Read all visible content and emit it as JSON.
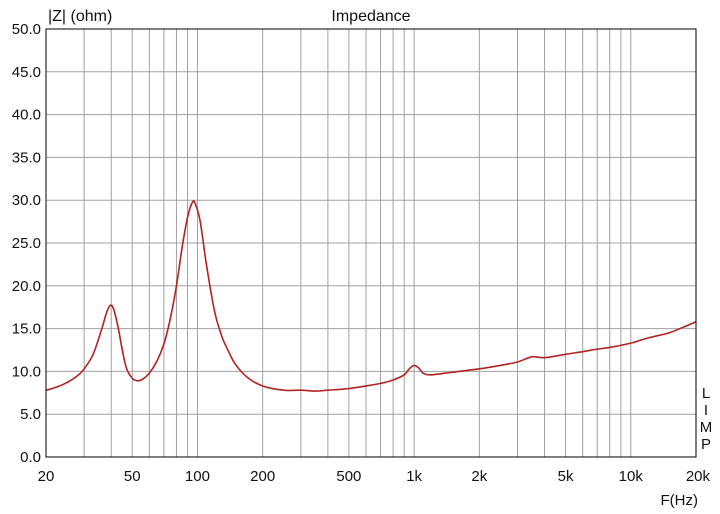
{
  "chart_data": {
    "type": "line",
    "title": "Impedance",
    "ylabel": "|Z| (ohm)",
    "xlabel": "F(Hz)",
    "side_label": [
      "L",
      "I",
      "M",
      "P"
    ],
    "x_scale": "log",
    "xlim": [
      20,
      20000
    ],
    "ylim": [
      0,
      50
    ],
    "grid": true,
    "x_ticks": [
      {
        "value": 20,
        "label": "20"
      },
      {
        "value": 50,
        "label": "50"
      },
      {
        "value": 100,
        "label": "100"
      },
      {
        "value": 200,
        "label": "200"
      },
      {
        "value": 500,
        "label": "500"
      },
      {
        "value": 1000,
        "label": "1k"
      },
      {
        "value": 2000,
        "label": "2k"
      },
      {
        "value": 5000,
        "label": "5k"
      },
      {
        "value": 10000,
        "label": "10k"
      },
      {
        "value": 20000,
        "label": "20k"
      }
    ],
    "x_minor_grid": [
      30,
      40,
      60,
      70,
      80,
      90,
      300,
      400,
      600,
      700,
      800,
      900,
      3000,
      4000,
      6000,
      7000,
      8000,
      9000
    ],
    "y_ticks": [
      {
        "value": 0,
        "label": "0.0"
      },
      {
        "value": 5,
        "label": "5.0"
      },
      {
        "value": 10,
        "label": "10.0"
      },
      {
        "value": 15,
        "label": "15.0"
      },
      {
        "value": 20,
        "label": "20.0"
      },
      {
        "value": 25,
        "label": "25.0"
      },
      {
        "value": 30,
        "label": "30.0"
      },
      {
        "value": 35,
        "label": "35.0"
      },
      {
        "value": 40,
        "label": "40.0"
      },
      {
        "value": 45,
        "label": "45.0"
      },
      {
        "value": 50,
        "label": "50.0"
      }
    ],
    "series": [
      {
        "color": "#b22222",
        "points": [
          [
            20,
            7.8
          ],
          [
            22,
            8.1
          ],
          [
            25,
            8.7
          ],
          [
            28,
            9.5
          ],
          [
            30,
            10.3
          ],
          [
            33,
            12.0
          ],
          [
            36,
            14.8
          ],
          [
            38,
            16.8
          ],
          [
            39.5,
            17.7
          ],
          [
            41,
            17.3
          ],
          [
            43,
            15.2
          ],
          [
            45,
            12.5
          ],
          [
            47,
            10.4
          ],
          [
            50,
            9.2
          ],
          [
            53,
            8.9
          ],
          [
            56,
            9.1
          ],
          [
            60,
            9.8
          ],
          [
            65,
            11.2
          ],
          [
            70,
            13.2
          ],
          [
            75,
            16.2
          ],
          [
            80,
            20.0
          ],
          [
            85,
            24.5
          ],
          [
            90,
            28.0
          ],
          [
            95,
            29.8
          ],
          [
            98,
            29.5
          ],
          [
            103,
            27.5
          ],
          [
            110,
            22.5
          ],
          [
            120,
            17.0
          ],
          [
            130,
            14.0
          ],
          [
            140,
            12.2
          ],
          [
            150,
            10.8
          ],
          [
            170,
            9.3
          ],
          [
            200,
            8.3
          ],
          [
            250,
            7.8
          ],
          [
            300,
            7.8
          ],
          [
            350,
            7.7
          ],
          [
            400,
            7.8
          ],
          [
            500,
            8.0
          ],
          [
            600,
            8.3
          ],
          [
            700,
            8.6
          ],
          [
            800,
            9.0
          ],
          [
            900,
            9.6
          ],
          [
            950,
            10.3
          ],
          [
            1000,
            10.7
          ],
          [
            1050,
            10.4
          ],
          [
            1100,
            9.8
          ],
          [
            1200,
            9.6
          ],
          [
            1500,
            9.9
          ],
          [
            2000,
            10.3
          ],
          [
            2500,
            10.7
          ],
          [
            3000,
            11.1
          ],
          [
            3500,
            11.7
          ],
          [
            4000,
            11.6
          ],
          [
            5000,
            12.0
          ],
          [
            6000,
            12.3
          ],
          [
            7000,
            12.6
          ],
          [
            8000,
            12.8
          ],
          [
            10000,
            13.3
          ],
          [
            12000,
            13.9
          ],
          [
            15000,
            14.5
          ],
          [
            18000,
            15.3
          ],
          [
            20000,
            15.8
          ]
        ]
      }
    ]
  }
}
